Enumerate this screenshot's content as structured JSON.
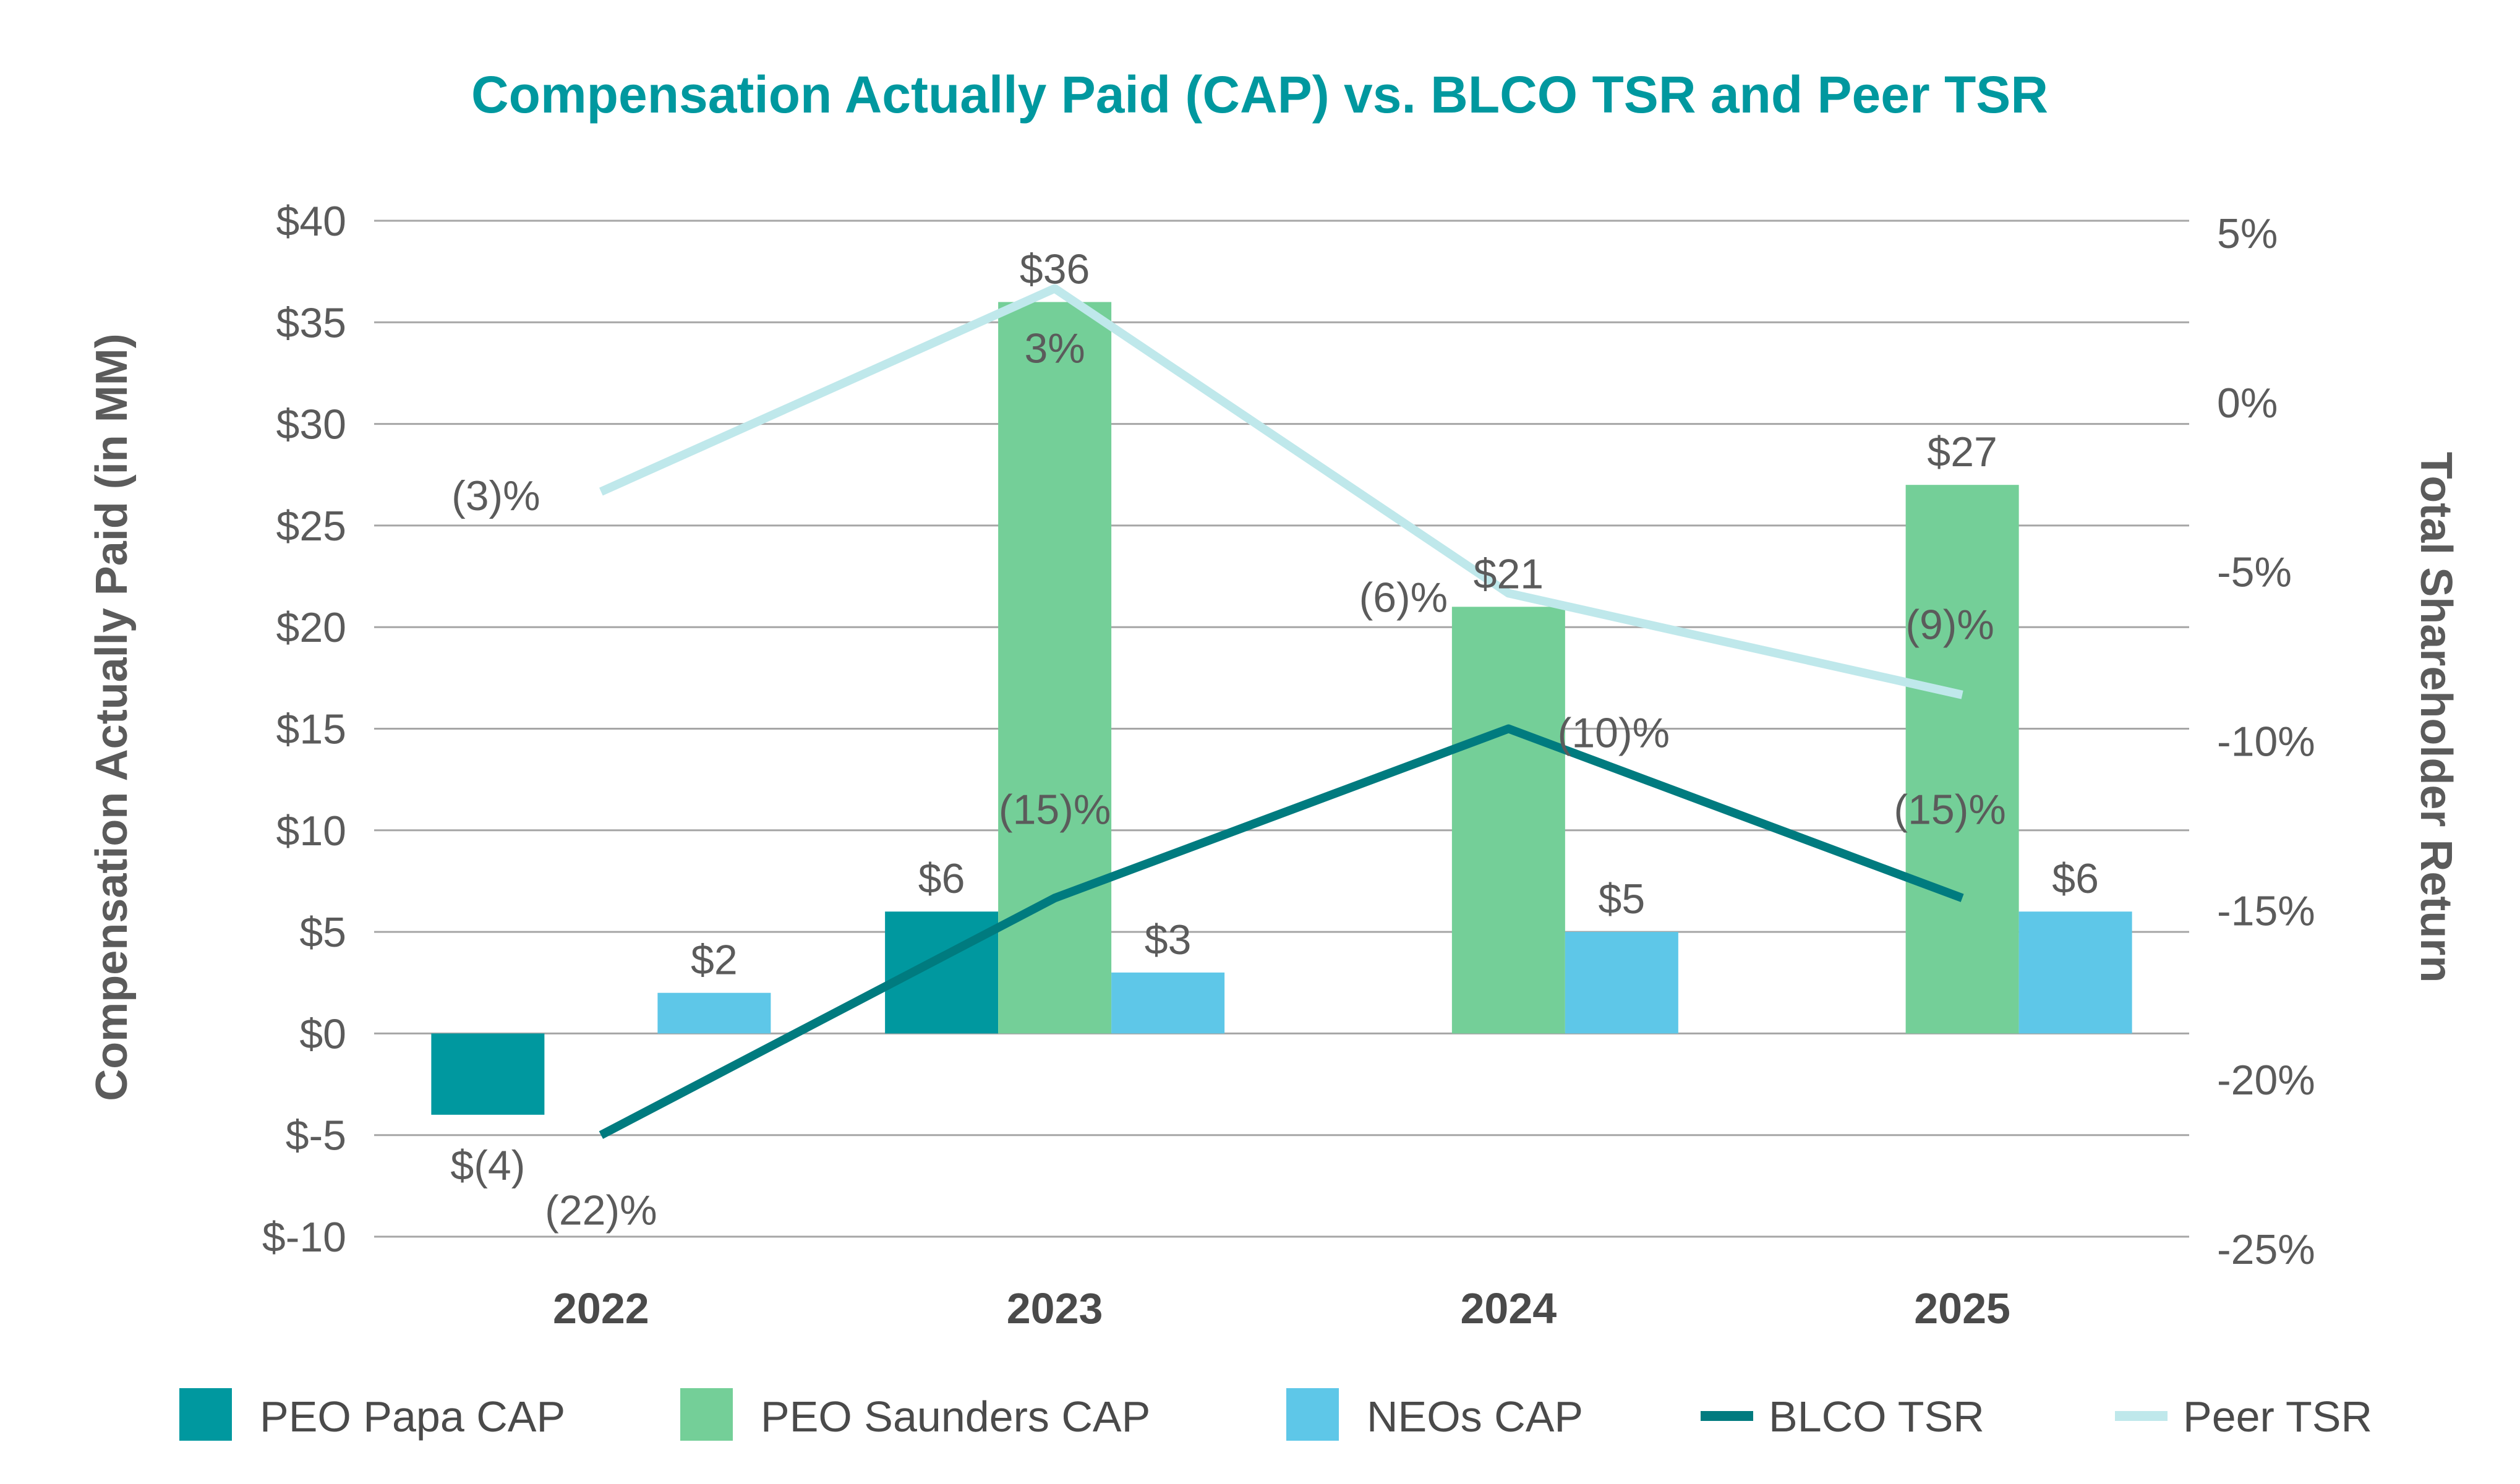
{
  "colors": {
    "title": "#00989f",
    "papa": "#00989f",
    "saunders": "#74cf98",
    "neos": "#5ec7e8",
    "blco_tsr": "#007b7f",
    "peer_tsr": "#bfe8eb",
    "grid": "#a6a6a6",
    "text": "#5b5b5b"
  },
  "chart_data": {
    "type": "bar",
    "title": "Compensation Actually Paid (CAP) vs. BLCO TSR and Peer TSR",
    "ylabel": "Compensation Actually Paid (in MM)",
    "y2label": "Total Shareholder Return",
    "categories": [
      "2022",
      "2023",
      "2024",
      "2025"
    ],
    "ylim": [
      -10,
      40
    ],
    "y2lim": [
      -25,
      5
    ],
    "yticks": [
      "$40",
      "$35",
      "$30",
      "$25",
      "$20",
      "$15",
      "$10",
      "$5",
      "$0",
      "$-5",
      "$-10"
    ],
    "y2ticks": [
      "5%",
      "0%",
      "-5%",
      "-10%",
      "-15%",
      "-20%",
      "-25%"
    ],
    "grid": true,
    "legend_position": "bottom",
    "series": [
      {
        "name": "PEO Papa CAP",
        "kind": "bar",
        "axis": "left",
        "values": [
          -4,
          6,
          null,
          null
        ],
        "labels": [
          "$(4)",
          "$6",
          null,
          null
        ]
      },
      {
        "name": "PEO Saunders CAP",
        "kind": "bar",
        "axis": "left",
        "values": [
          null,
          36,
          21,
          27
        ],
        "labels": [
          null,
          "$36",
          "$21",
          "$27"
        ]
      },
      {
        "name": "NEOs CAP",
        "kind": "bar",
        "axis": "left",
        "values": [
          2,
          3,
          5,
          6
        ],
        "labels": [
          "$2",
          "$3",
          "$5",
          "$6"
        ]
      },
      {
        "name": "BLCO TSR",
        "kind": "line",
        "axis": "right",
        "values": [
          -22,
          -15,
          -10,
          -15
        ],
        "labels": [
          "(22)%",
          "(15)%",
          "(10)%",
          "(15)%"
        ]
      },
      {
        "name": "Peer TSR",
        "kind": "line",
        "axis": "right",
        "values": [
          -3,
          3,
          -6,
          -9
        ],
        "labels": [
          "(3)%",
          "3%",
          "(6)%",
          "(9)%"
        ]
      }
    ]
  }
}
